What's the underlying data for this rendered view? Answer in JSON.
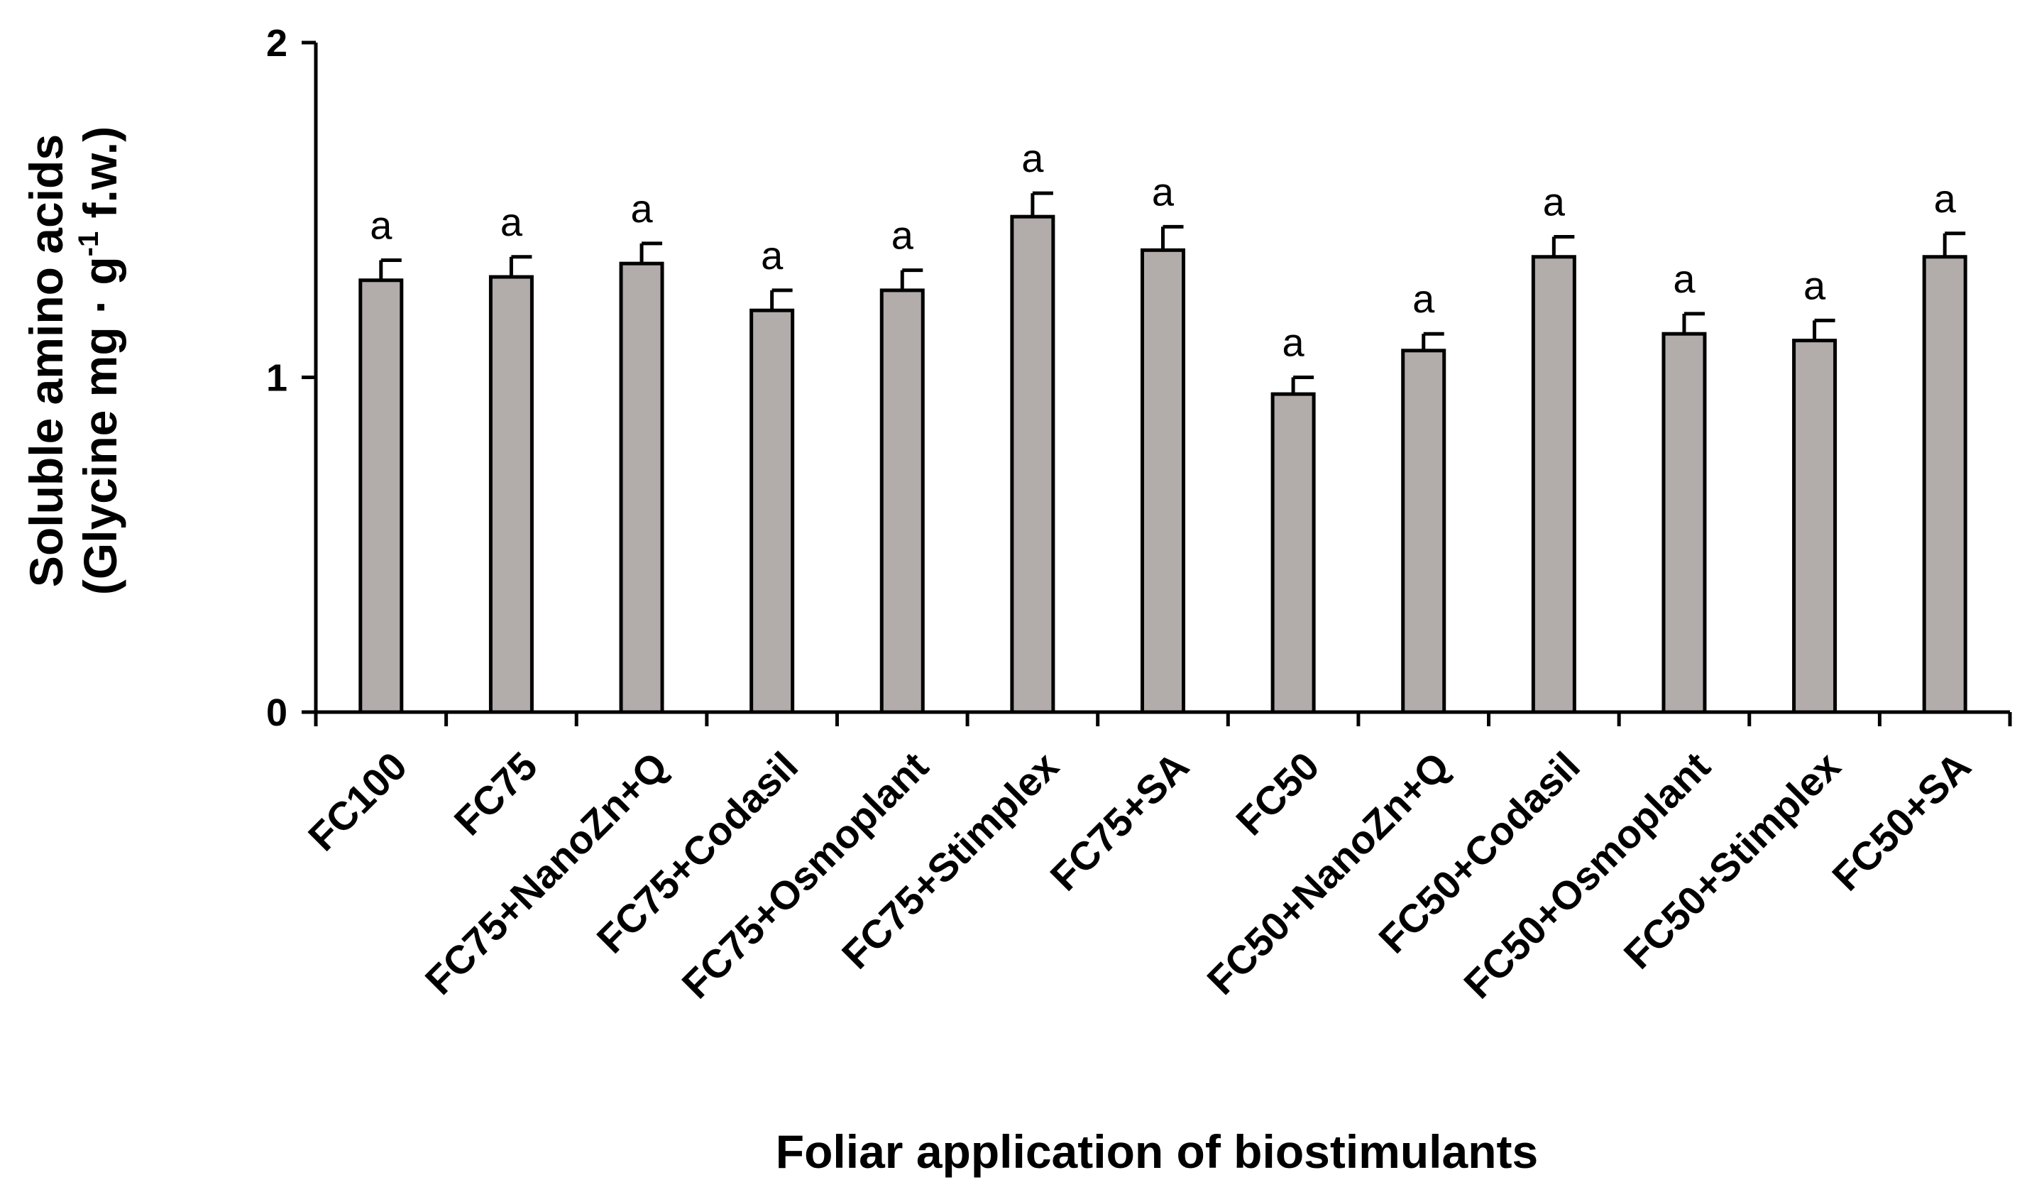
{
  "chart_data": {
    "type": "bar",
    "categories": [
      "FC100",
      "FC75",
      "FC75+NanoZn+Q",
      "FC75+Codasil",
      "FC75+Osmoplant",
      "FC75+Stimplex",
      "FC75+SA",
      "FC50",
      "FC50+NanoZn+Q",
      "FC50+Codasil",
      "FC50+Osmoplant",
      "FC50+Stimplex",
      "FC50+SA"
    ],
    "values": [
      1.29,
      1.3,
      1.34,
      1.2,
      1.26,
      1.48,
      1.38,
      0.95,
      1.08,
      1.36,
      1.13,
      1.11,
      1.36
    ],
    "errors": [
      0.06,
      0.06,
      0.06,
      0.06,
      0.06,
      0.07,
      0.07,
      0.05,
      0.05,
      0.06,
      0.06,
      0.06,
      0.07
    ],
    "annotations": [
      "a",
      "a",
      "a",
      "a",
      "a",
      "a",
      "a",
      "a",
      "a",
      "a",
      "a",
      "a",
      "a"
    ],
    "xlabel": "Foliar application of biostimulants",
    "ylabel_line1": "Soluble amino acids",
    "ylabel_line2_pre": "(Glycine mg · g",
    "ylabel_line2_sup": "-1",
    "ylabel_line2_post": " f.w.)",
    "yticks": [
      "0",
      "1",
      "2"
    ],
    "ylim": [
      0,
      2
    ],
    "grid": false,
    "legend": "none",
    "bar_color": "#b2acab",
    "edge_color": "#000000"
  }
}
